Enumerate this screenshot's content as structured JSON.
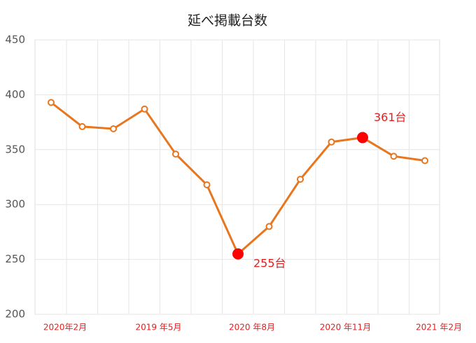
{
  "chart_data": {
    "type": "line",
    "title": "延べ掲載台数",
    "categories": [
      "2020年2月",
      null,
      null,
      "2019 年5月",
      null,
      null,
      "2020 年8月",
      null,
      null,
      "2020 年11月",
      null,
      null,
      "2021 年2月"
    ],
    "series": [
      {
        "name": "延べ掲載台数",
        "color": "#e8761e",
        "values": [
          393,
          371,
          369,
          387,
          346,
          318,
          255,
          280,
          323,
          357,
          361,
          344,
          340
        ],
        "value_labels": [
          null,
          null,
          null,
          null,
          null,
          null,
          "255台",
          null,
          null,
          null,
          "361台",
          null,
          null
        ]
      }
    ],
    "highlight_color": "#ff0000",
    "ylim": [
      200,
      450
    ],
    "yticks": [
      200,
      250,
      300,
      350,
      400,
      450
    ],
    "grid": true
  }
}
